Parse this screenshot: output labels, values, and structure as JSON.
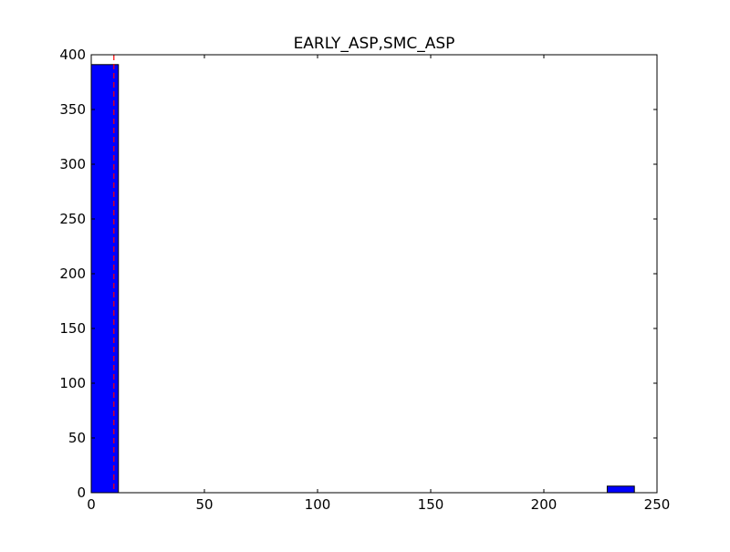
{
  "chart_data": {
    "type": "bar",
    "title": "EARLY_ASP,SMC_ASP",
    "xlabel": "",
    "ylabel": "",
    "xlim": [
      0,
      250
    ],
    "ylim": [
      0,
      400
    ],
    "xticks": [
      0,
      50,
      100,
      150,
      200,
      250
    ],
    "yticks": [
      0,
      50,
      100,
      150,
      200,
      250,
      300,
      350,
      400
    ],
    "grid": false,
    "legend": "none",
    "bins": [
      {
        "x0": 0,
        "x1": 12,
        "count": 391
      },
      {
        "x0": 12,
        "x1": 24,
        "count": 0
      },
      {
        "x0": 24,
        "x1": 36,
        "count": 0
      },
      {
        "x0": 36,
        "x1": 48,
        "count": 0
      },
      {
        "x0": 48,
        "x1": 60,
        "count": 0
      },
      {
        "x0": 60,
        "x1": 72,
        "count": 0
      },
      {
        "x0": 72,
        "x1": 84,
        "count": 0
      },
      {
        "x0": 84,
        "x1": 96,
        "count": 0
      },
      {
        "x0": 96,
        "x1": 108,
        "count": 0
      },
      {
        "x0": 108,
        "x1": 120,
        "count": 0
      },
      {
        "x0": 120,
        "x1": 132,
        "count": 0
      },
      {
        "x0": 132,
        "x1": 144,
        "count": 0
      },
      {
        "x0": 144,
        "x1": 156,
        "count": 0
      },
      {
        "x0": 156,
        "x1": 168,
        "count": 0
      },
      {
        "x0": 168,
        "x1": 180,
        "count": 0
      },
      {
        "x0": 180,
        "x1": 192,
        "count": 0
      },
      {
        "x0": 192,
        "x1": 204,
        "count": 0
      },
      {
        "x0": 204,
        "x1": 216,
        "count": 0
      },
      {
        "x0": 216,
        "x1": 228,
        "count": 0
      },
      {
        "x0": 228,
        "x1": 240,
        "count": 6
      }
    ],
    "reference_line": {
      "x": 10,
      "style": "dashed"
    },
    "colors": {
      "bar_fill": "#0000ff",
      "bar_edge": "#000000",
      "reference_line": "#ff0000",
      "axes": "#000000"
    }
  }
}
